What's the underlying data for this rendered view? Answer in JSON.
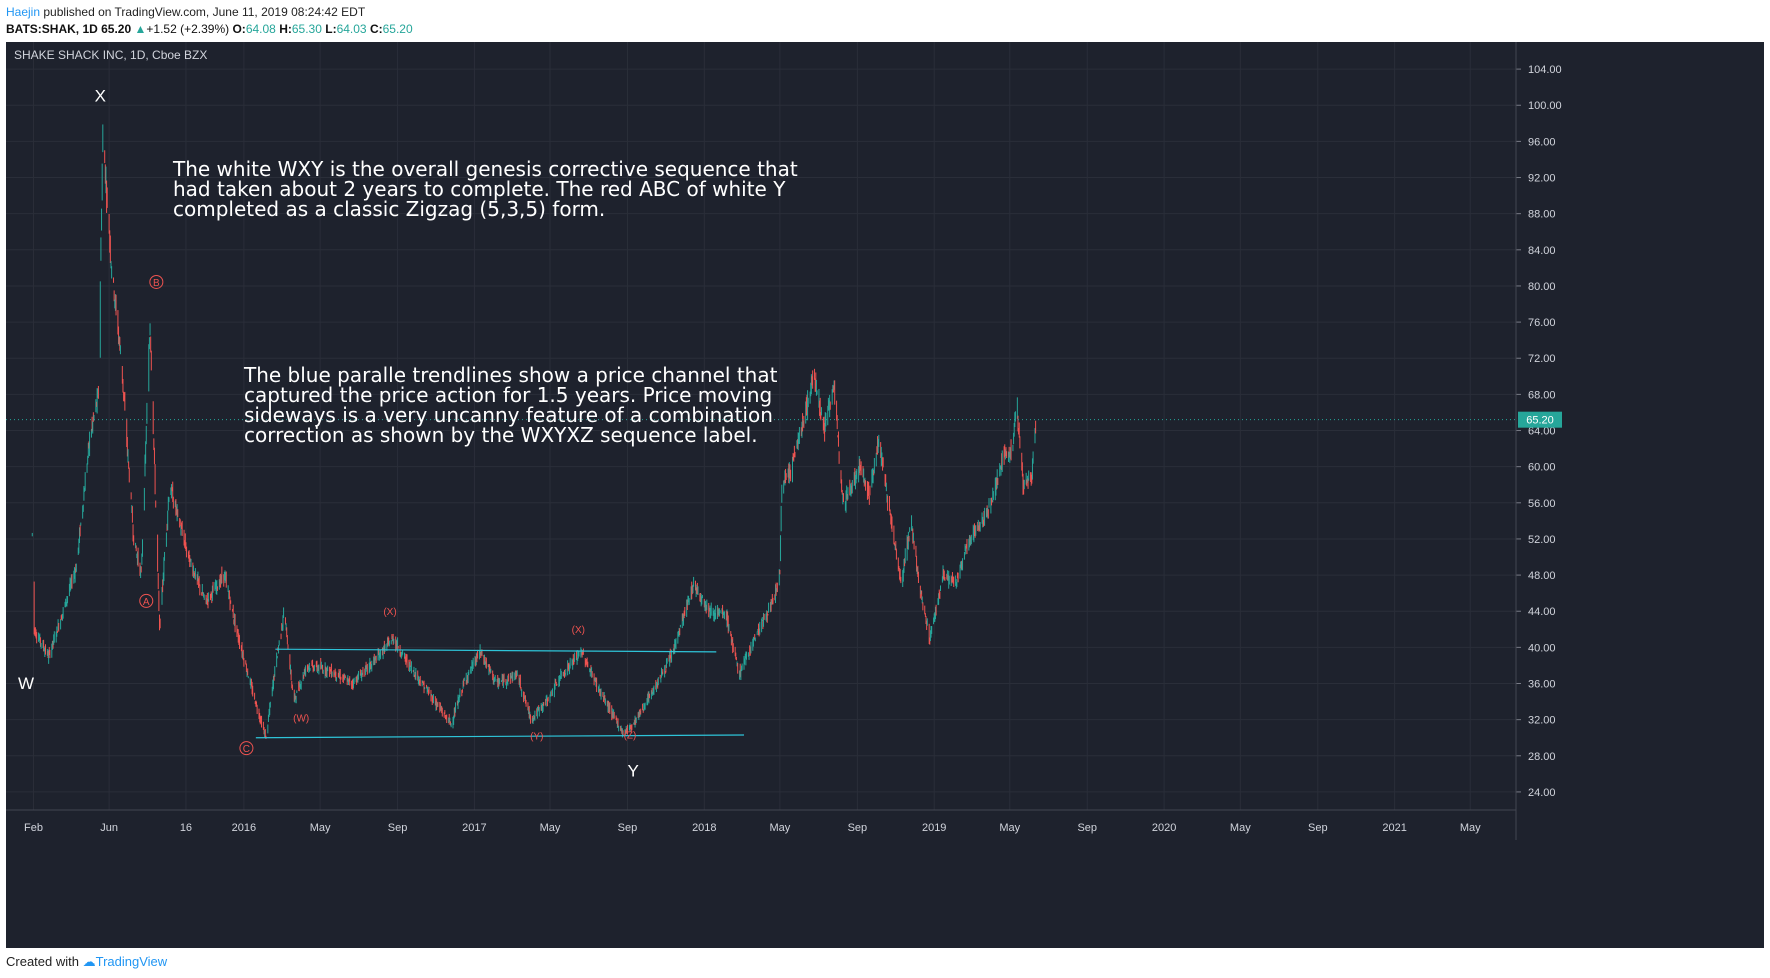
{
  "header": {
    "author": "Haejin",
    "published": "published on TradingView.com, June 11, 2019 08:24:42 EDT",
    "symbol": "BATS:SHAK, 1D",
    "last": "65.20",
    "change_arrow": "▲",
    "change": "+1.52 (+2.39%)",
    "o_label": "O:",
    "o_value": "64.08",
    "h_label": "H:",
    "h_value": "65.30",
    "l_label": "L:",
    "l_value": "64.03",
    "c_label": "C:",
    "c_value": "65.20"
  },
  "footer": {
    "created_with": "Created with",
    "brand": "TradingView"
  },
  "colors": {
    "background": "#1e222d",
    "up": "#26a69a",
    "down": "#ef5350",
    "channel": "#2ec4d8",
    "price_tag": "#26a69a",
    "red_labels": "#ef5350",
    "white_labels": "#ffffff"
  },
  "annotations": [
    {
      "text": "The white WXY is the overall genesis corrective sequence that\nhad taken about 2 years to complete. The red ABC of white Y\ncompleted as a classic Zigzag (5,3,5) form."
    },
    {
      "text": "The blue paralle trendlines show a price channel that\ncaptured the price action for 1.5 years. Price moving\nsideways is a very uncanny feature of a combination\ncorrection as shown by the WXYXZ sequence label."
    }
  ],
  "chart_data": {
    "type": "candlestick",
    "title": "SHAKE SHACK INC, 1D, Cboe BZX",
    "ylim": [
      22,
      107
    ],
    "y_ticks": [
      "24.00",
      "28.00",
      "32.00",
      "36.00",
      "40.00",
      "44.00",
      "48.00",
      "52.00",
      "56.00",
      "60.00",
      "64.00",
      "68.00",
      "72.00",
      "76.00",
      "80.00",
      "84.00",
      "88.00",
      "92.00",
      "96.00",
      "100.00",
      "104.00"
    ],
    "x_ticks": [
      "Feb",
      "Jun",
      "16",
      "2016",
      "May",
      "Sep",
      "2017",
      "May",
      "Sep",
      "2018",
      "May",
      "Sep",
      "2019",
      "May",
      "Sep",
      "2020",
      "May",
      "Sep",
      "2021",
      "May"
    ],
    "price_label": "65.20",
    "price_path": [
      [
        "2015-01-30",
        52.5
      ],
      [
        "2015-02-02",
        42
      ],
      [
        "2015-02-25",
        39
      ],
      [
        "2015-03-20",
        44
      ],
      [
        "2015-04-10",
        49
      ],
      [
        "2015-05-01",
        63
      ],
      [
        "2015-05-15",
        68
      ],
      [
        "2015-05-22",
        96.8
      ],
      [
        "2015-06-05",
        82
      ],
      [
        "2015-06-20",
        72
      ],
      [
        "2015-07-10",
        52
      ],
      [
        "2015-07-22",
        48
      ],
      [
        "2015-08-05",
        76
      ],
      [
        "2015-08-20",
        42
      ],
      [
        "2015-09-05",
        58
      ],
      [
        "2015-10-05",
        50
      ],
      [
        "2015-11-01",
        45
      ],
      [
        "2015-12-01",
        48
      ],
      [
        "2015-12-20",
        42
      ],
      [
        "2016-01-15",
        35
      ],
      [
        "2016-02-05",
        30
      ],
      [
        "2016-02-20",
        38
      ],
      [
        "2016-03-05",
        44
      ],
      [
        "2016-03-20",
        34
      ],
      [
        "2016-04-10",
        38
      ],
      [
        "2016-05-15",
        37.5
      ],
      [
        "2016-06-20",
        36
      ],
      [
        "2016-07-20",
        38
      ],
      [
        "2016-08-25",
        41
      ],
      [
        "2016-09-15",
        38.5
      ],
      [
        "2016-10-20",
        35
      ],
      [
        "2016-11-25",
        31.5
      ],
      [
        "2016-12-15",
        36
      ],
      [
        "2017-01-10",
        39.5
      ],
      [
        "2017-02-05",
        36
      ],
      [
        "2017-03-10",
        37
      ],
      [
        "2017-04-01",
        32
      ],
      [
        "2017-04-25",
        34
      ],
      [
        "2017-05-20",
        37
      ],
      [
        "2017-06-20",
        39.5
      ],
      [
        "2017-07-20",
        35
      ],
      [
        "2017-08-25",
        30.5
      ],
      [
        "2017-09-10",
        31.5
      ],
      [
        "2017-10-10",
        35
      ],
      [
        "2017-11-10",
        39
      ],
      [
        "2017-12-15",
        47
      ],
      [
        "2018-01-10",
        44
      ],
      [
        "2018-02-05",
        43.5
      ],
      [
        "2018-02-25",
        37
      ],
      [
        "2018-03-25",
        41.5
      ],
      [
        "2018-04-20",
        45
      ],
      [
        "2018-05-01",
        48
      ],
      [
        "2018-05-04",
        58
      ],
      [
        "2018-05-20",
        60
      ],
      [
        "2018-06-10",
        66
      ],
      [
        "2018-06-25",
        70.2
      ],
      [
        "2018-07-10",
        64
      ],
      [
        "2018-07-25",
        69
      ],
      [
        "2018-08-10",
        56
      ],
      [
        "2018-09-05",
        60
      ],
      [
        "2018-09-20",
        57
      ],
      [
        "2018-10-05",
        63
      ],
      [
        "2018-10-20",
        56
      ],
      [
        "2018-11-10",
        47
      ],
      [
        "2018-11-25",
        54
      ],
      [
        "2018-12-10",
        46
      ],
      [
        "2018-12-25",
        41
      ],
      [
        "2019-01-15",
        48
      ],
      [
        "2019-02-05",
        47
      ],
      [
        "2019-02-25",
        52
      ],
      [
        "2019-03-20",
        54
      ],
      [
        "2019-04-05",
        57
      ],
      [
        "2019-04-20",
        61
      ],
      [
        "2019-05-05",
        62
      ],
      [
        "2019-05-12",
        67
      ],
      [
        "2019-05-22",
        58
      ],
      [
        "2019-06-05",
        59
      ],
      [
        "2019-06-11",
        65.2
      ]
    ],
    "trendlines": [
      {
        "name": "upper",
        "from": [
          "2016-02-20",
          39.8
        ],
        "to": [
          "2018-01-20",
          39.5
        ]
      },
      {
        "name": "lower",
        "from": [
          "2016-01-20",
          30.0
        ],
        "to": [
          "2018-03-05",
          30.3
        ]
      }
    ],
    "wave_labels": [
      {
        "text": "W",
        "date": "2015-01-20",
        "price": 35.4,
        "color": "white"
      },
      {
        "text": "X",
        "date": "2015-05-18",
        "price": 100.4,
        "color": "white"
      },
      {
        "text": "Y",
        "date": "2017-09-10",
        "price": 25.7,
        "color": "white"
      },
      {
        "text": "A",
        "date": "2015-07-30",
        "price": 44.7,
        "color": "red-circle"
      },
      {
        "text": "B",
        "date": "2015-08-15",
        "price": 80,
        "color": "red-circle"
      },
      {
        "text": "C",
        "date": "2016-01-05",
        "price": 28.4,
        "color": "red-circle"
      },
      {
        "text": "(W)",
        "date": "2016-04-01",
        "price": 31.8,
        "color": "red"
      },
      {
        "text": "(X)",
        "date": "2016-08-20",
        "price": 43.6,
        "color": "red"
      },
      {
        "text": "(Y)",
        "date": "2017-04-10",
        "price": 29.8,
        "color": "red"
      },
      {
        "text": "(X)",
        "date": "2017-06-15",
        "price": 41.6,
        "color": "red"
      },
      {
        "text": "(Z)",
        "date": "2017-09-05",
        "price": 29.9,
        "color": "red"
      }
    ]
  }
}
